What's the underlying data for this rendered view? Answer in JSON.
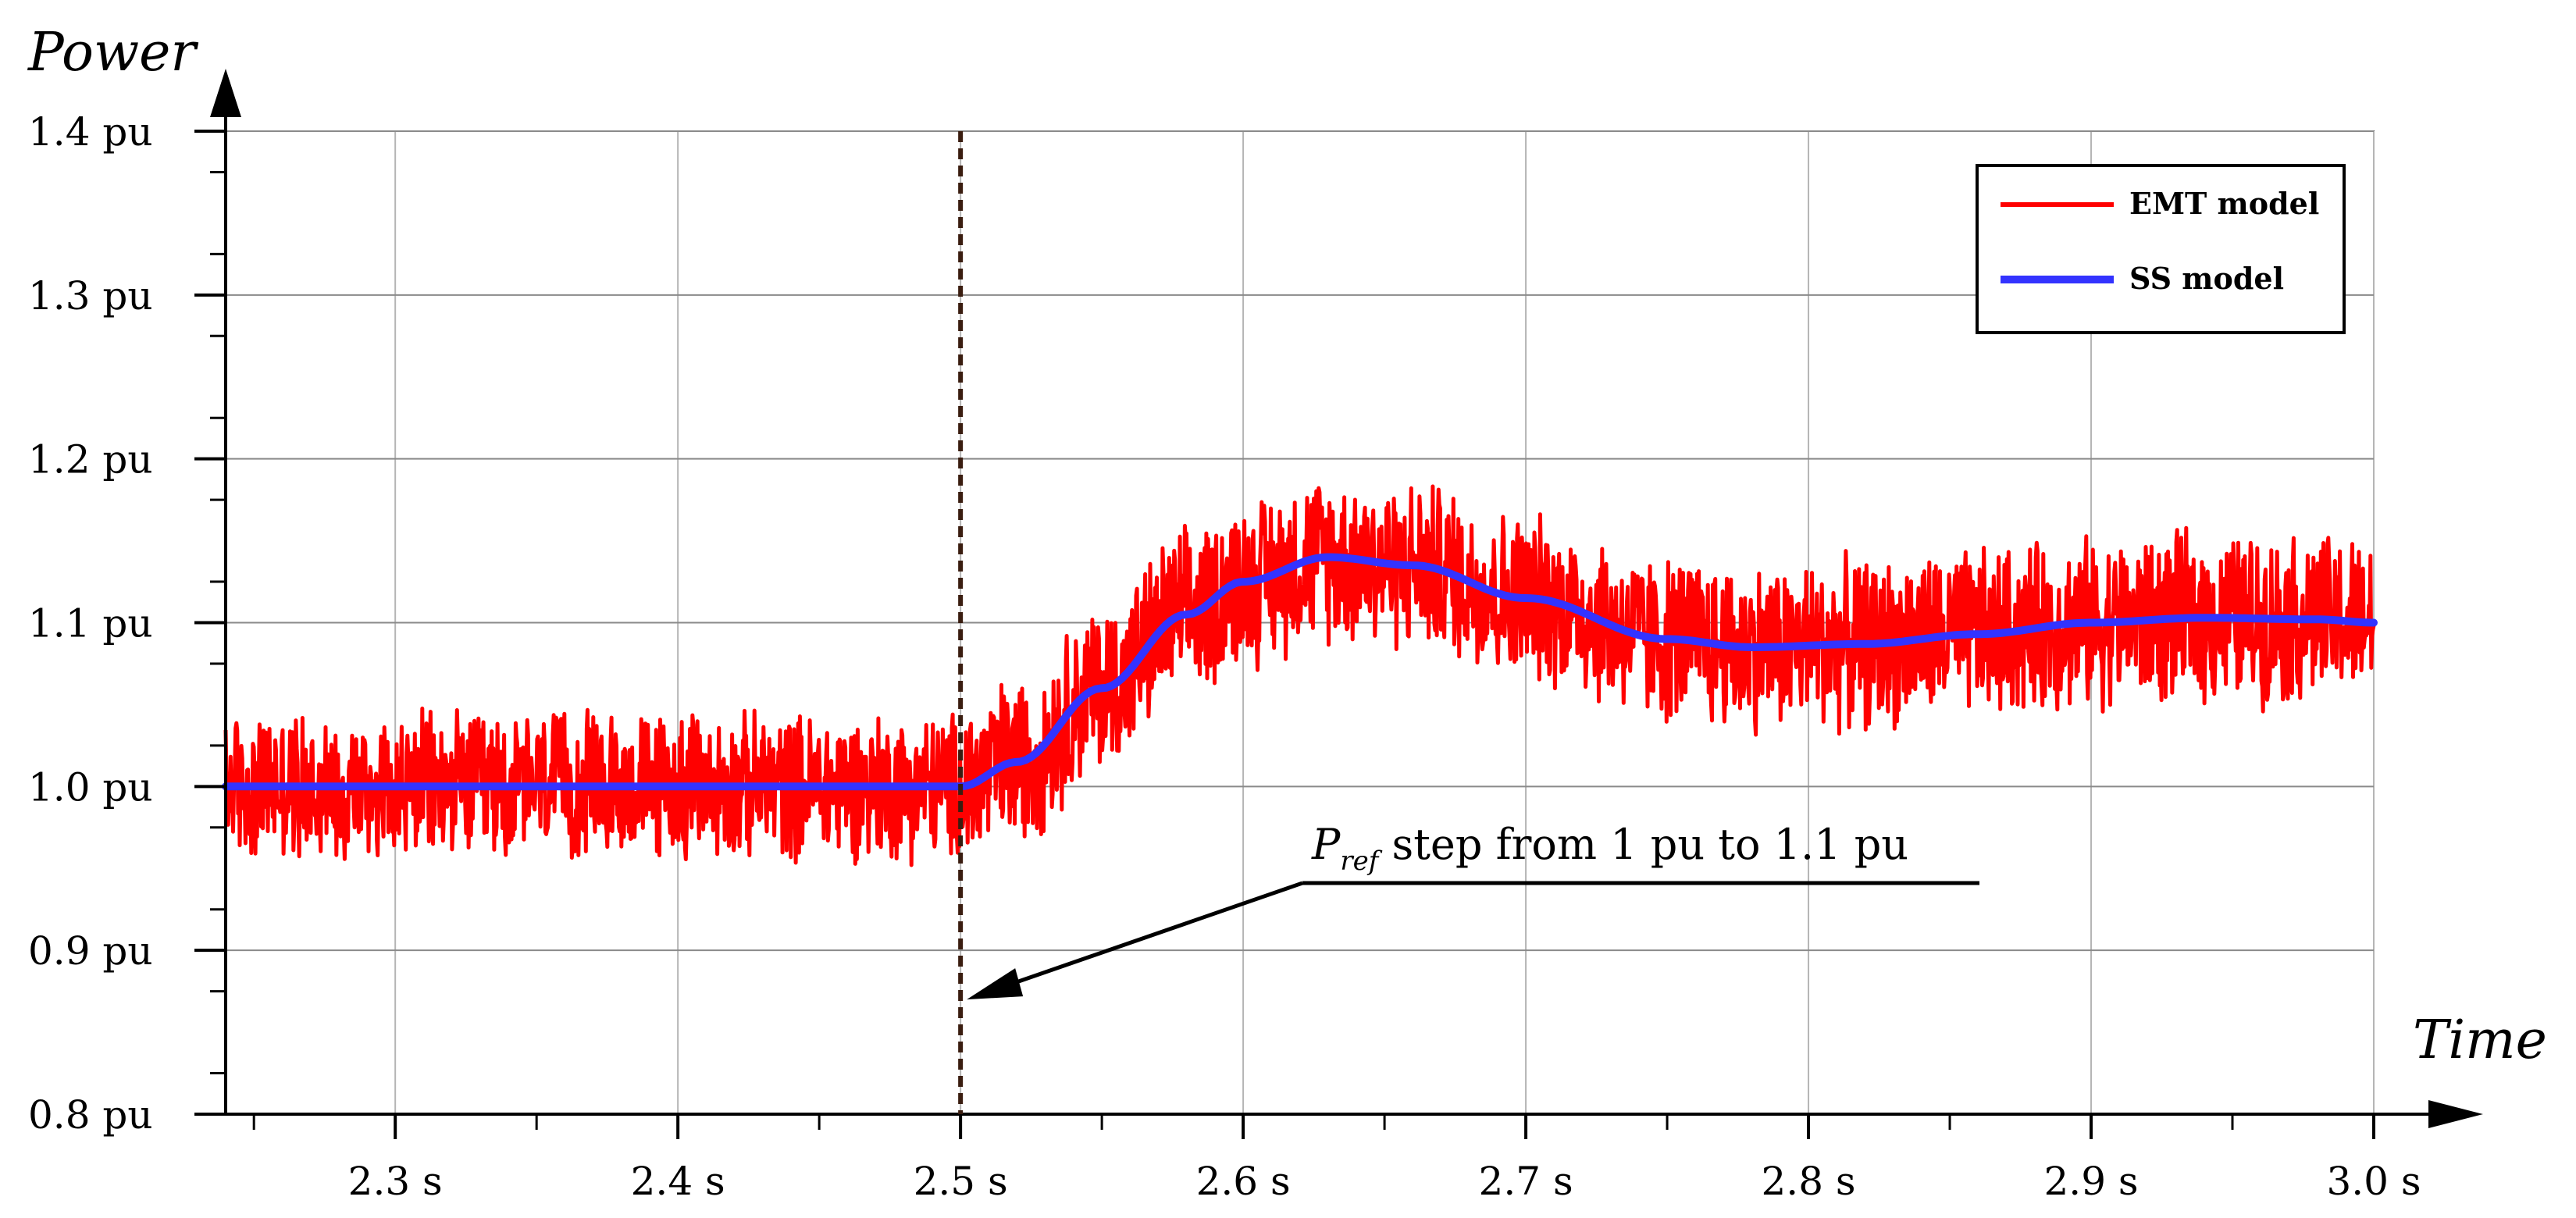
{
  "chart_data": {
    "type": "line",
    "ylabel": "Power",
    "xlabel": "Time",
    "xlim": [
      2.24,
      3.0
    ],
    "ylim": [
      0.8,
      1.4
    ],
    "x_ticks": [
      2.3,
      2.4,
      2.5,
      2.6,
      2.7,
      2.8,
      2.9,
      3.0
    ],
    "x_tick_labels": [
      "2.3 s",
      "2.4 s",
      "2.5 s",
      "2.6 s",
      "2.7 s",
      "2.8 s",
      "2.9 s",
      "3.0 s"
    ],
    "y_ticks": [
      0.8,
      0.9,
      1.0,
      1.1,
      1.2,
      1.3,
      1.4
    ],
    "y_tick_labels": [
      "0.8 pu",
      "0.9 pu",
      "1.0 pu",
      "1.1 pu",
      "1.2 pu",
      "1.3 pu",
      "1.4 pu"
    ],
    "grid": true,
    "legend_position": "top-right",
    "series": [
      {
        "name": "EMT model",
        "color": "#ff0000",
        "noise_amplitude": 0.05,
        "x": [
          2.24,
          2.3,
          2.4,
          2.5,
          2.52,
          2.55,
          2.58,
          2.6,
          2.63,
          2.66,
          2.7,
          2.75,
          2.78,
          2.82,
          2.86,
          2.9,
          2.94,
          2.98,
          3.0
        ],
        "y": [
          1.0,
          1.0,
          1.0,
          1.0,
          1.015,
          1.06,
          1.105,
          1.125,
          1.14,
          1.135,
          1.115,
          1.09,
          1.085,
          1.087,
          1.093,
          1.1,
          1.103,
          1.102,
          1.1
        ]
      },
      {
        "name": "SS model",
        "color": "#3333ff",
        "x": [
          2.24,
          2.3,
          2.4,
          2.5,
          2.52,
          2.55,
          2.58,
          2.6,
          2.63,
          2.66,
          2.7,
          2.75,
          2.78,
          2.82,
          2.86,
          2.9,
          2.94,
          2.98,
          3.0
        ],
        "y": [
          1.0,
          1.0,
          1.0,
          1.0,
          1.015,
          1.06,
          1.105,
          1.125,
          1.14,
          1.135,
          1.115,
          1.09,
          1.085,
          1.087,
          1.093,
          1.1,
          1.103,
          1.102,
          1.1
        ]
      }
    ],
    "annotations": [
      {
        "text_main": "P",
        "text_sub": "ref",
        "text_rest": " step from 1 pu to 1.1 pu",
        "target_x": 2.5,
        "target_y": 0.87
      }
    ],
    "reference_line": {
      "x": 2.5,
      "color": "#3a1d10",
      "style": "dashed"
    }
  }
}
